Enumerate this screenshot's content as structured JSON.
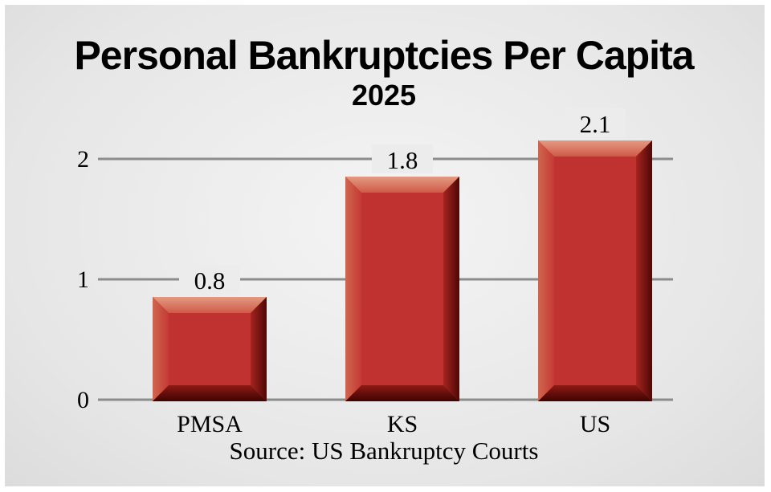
{
  "chart_data": {
    "type": "bar",
    "title": "Personal Bankruptcies Per Capita",
    "subtitle": "2025",
    "categories": [
      "PMSA",
      "KS",
      "US"
    ],
    "values": [
      0.8,
      1.8,
      2.1
    ],
    "data_labels": [
      "0.8",
      "1.8",
      "2.1"
    ],
    "yticks": [
      "0",
      "1",
      "2"
    ],
    "ylim": [
      0,
      2.2
    ],
    "grid": true,
    "xlabel": "",
    "ylabel": "",
    "source": "Source: US Bankruptcy Courts",
    "colors": {
      "bar": "#c0322f",
      "bar_dark": "#5a0a08",
      "bar_light": "#e0907a",
      "grid": "#8c8c8c"
    }
  }
}
